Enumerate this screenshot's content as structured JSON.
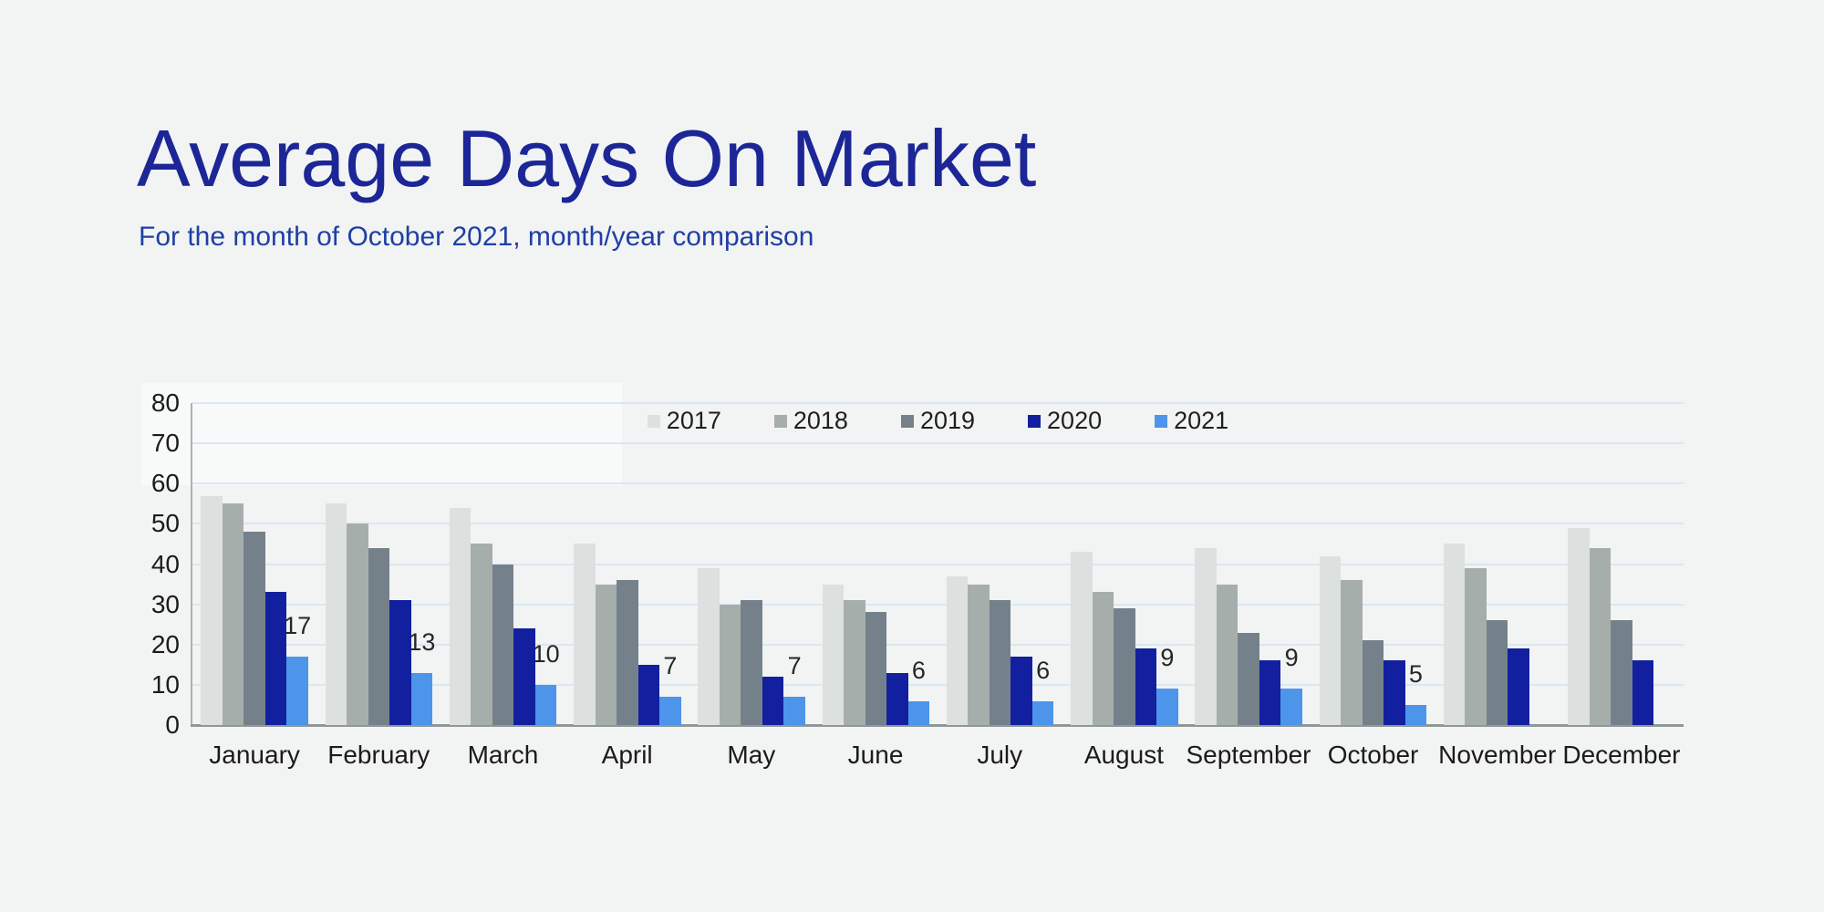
{
  "page": {
    "background_color": "#f2f3f3"
  },
  "header": {
    "title": "Average Days On Market",
    "subtitle": "For the month of October 2021, month/year comparison",
    "title_color": "#1c2697",
    "subtitle_color": "#1e3fa4"
  },
  "chart_data": {
    "type": "bar",
    "title": "Average Days On Market",
    "subtitle": "For the month of October 2021, month/year comparison",
    "categories": [
      "January",
      "February",
      "March",
      "April",
      "May",
      "June",
      "July",
      "August",
      "September",
      "October",
      "November",
      "December"
    ],
    "series": [
      {
        "name": "2017",
        "color": "#dce1e0",
        "values": [
          57,
          55,
          54,
          45,
          39,
          35,
          37,
          43,
          44,
          42,
          45,
          49
        ]
      },
      {
        "name": "2018",
        "color": "#a6aeac",
        "values": [
          55,
          50,
          45,
          35,
          30,
          31,
          35,
          33,
          35,
          36,
          39,
          44
        ]
      },
      {
        "name": "2019",
        "color": "#75818a",
        "values": [
          48,
          44,
          40,
          36,
          31,
          28,
          31,
          29,
          23,
          21,
          26,
          26
        ]
      },
      {
        "name": "2020",
        "color": "#12209f",
        "values": [
          33,
          31,
          24,
          15,
          12,
          13,
          17,
          19,
          16,
          16,
          19,
          16
        ]
      },
      {
        "name": "2021",
        "color": "#4d95eb",
        "values": [
          17,
          13,
          10,
          7,
          7,
          6,
          6,
          9,
          9,
          5,
          null,
          null
        ],
        "data_labels": true
      }
    ],
    "xlabel": "",
    "ylabel": "",
    "ylim": [
      0,
      80
    ],
    "ytick_step": 10,
    "yticks": [
      0,
      10,
      20,
      30,
      40,
      50,
      60,
      70,
      80
    ],
    "grid": "horizontal",
    "gridline_color": "#dae7f3",
    "axis_line_color": "#8f9797",
    "label_text_color": "#1b1b1b",
    "legend_position": "top-center"
  }
}
